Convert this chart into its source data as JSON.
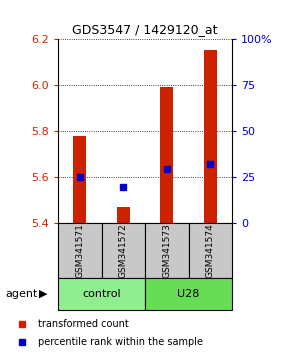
{
  "title": "GDS3547 / 1429120_at",
  "samples": [
    "GSM341571",
    "GSM341572",
    "GSM341573",
    "GSM341574"
  ],
  "y_min": 5.4,
  "y_max": 6.2,
  "y_ticks": [
    5.4,
    5.6,
    5.8,
    6.0,
    6.2
  ],
  "y_ticks_right": [
    0,
    25,
    50,
    75,
    100
  ],
  "y_ticks_right_labels": [
    "0",
    "25",
    "50",
    "75",
    "100%"
  ],
  "bar_bottoms": [
    5.4,
    5.4,
    5.4,
    5.4
  ],
  "bar_tops": [
    5.78,
    5.47,
    5.99,
    6.15
  ],
  "percentile_values": [
    5.6,
    5.557,
    5.635,
    5.658
  ],
  "bar_color": "#CC2200",
  "percentile_color": "#0000CC",
  "bar_width": 0.3,
  "control_color": "#90EE90",
  "u28_color": "#66DD55",
  "sample_box_color": "#C8C8C8",
  "title_fontsize": 9,
  "tick_fontsize": 8,
  "label_fontsize": 8,
  "legend_fontsize": 7
}
